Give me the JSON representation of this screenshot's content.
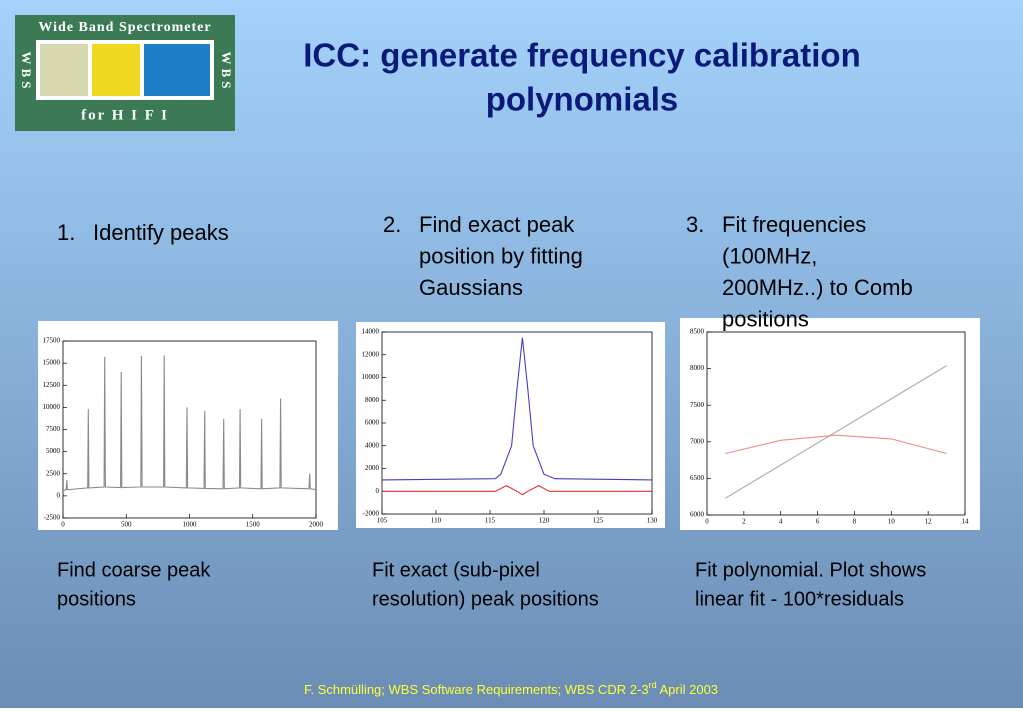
{
  "logo": {
    "title": "Wide Band Spectrometer",
    "subtitle": "for H I F I",
    "side": "WBS"
  },
  "title": [
    "ICC: generate frequency calibration",
    "polynomials"
  ],
  "steps": [
    {
      "number": "1.",
      "lines": [
        "Identify peaks"
      ]
    },
    {
      "number": "2.",
      "lines": [
        "Find exact peak",
        "position by fitting",
        "Gaussians"
      ]
    },
    {
      "number": "3.",
      "lines": [
        "Fit frequencies",
        "(100MHz,",
        "200MHz..) to Comb",
        "positions"
      ]
    }
  ],
  "captions": [
    [
      "Find coarse peak",
      "positions"
    ],
    [
      "Fit exact (sub-pixel",
      "resolution) peak positions"
    ],
    [
      "Fit polynomial. Plot shows",
      "linear fit - 100*residuals"
    ]
  ],
  "footer": [
    "F. Schmülling; WBS Software Requirements; WBS CDR 2-3",
    "rd",
    " April 2003"
  ],
  "chart_data": [
    {
      "type": "line",
      "xlim": [
        0,
        2000
      ],
      "ylim": [
        -2500,
        17500
      ],
      "xticks": [
        0,
        500,
        1000,
        1500,
        2000
      ],
      "yticks": [
        -2500,
        0,
        2500,
        5000,
        7500,
        10000,
        12500,
        15000,
        17500
      ],
      "series": [
        {
          "color": "#8a8a8a",
          "x": [
            0,
            25,
            30,
            35,
            195,
            200,
            205,
            325,
            330,
            335,
            455,
            460,
            465,
            615,
            620,
            625,
            795,
            800,
            805,
            975,
            980,
            985,
            1115,
            1120,
            1125,
            1265,
            1270,
            1275,
            1395,
            1400,
            1405,
            1565,
            1570,
            1575,
            1715,
            1720,
            1725,
            1945,
            1950,
            1955,
            2000
          ],
          "values": [
            600,
            700,
            1800,
            700,
            900,
            9800,
            900,
            1000,
            15700,
            1000,
            950,
            14000,
            950,
            1000,
            15800,
            1000,
            1000,
            15900,
            1000,
            900,
            10000,
            900,
            850,
            9600,
            850,
            800,
            8700,
            800,
            900,
            9800,
            900,
            800,
            8700,
            800,
            900,
            11000,
            900,
            800,
            2500,
            800,
            700
          ]
        }
      ]
    },
    {
      "type": "line",
      "xlim": [
        105,
        130
      ],
      "ylim": [
        -2000,
        14000
      ],
      "xticks": [
        105,
        110,
        115,
        120,
        125,
        130
      ],
      "yticks": [
        -2000,
        0,
        2000,
        4000,
        6000,
        8000,
        10000,
        12000,
        14000
      ],
      "series": [
        {
          "color": "#4040c0",
          "x": [
            105,
            115.5,
            116,
            117,
            117.5,
            118,
            118.5,
            119,
            120,
            121,
            130
          ],
          "values": [
            1000,
            1100,
            1500,
            4000,
            9000,
            13500,
            9000,
            4000,
            1500,
            1100,
            1000
          ]
        },
        {
          "color": "#e03030",
          "x": [
            105,
            115.5,
            116.5,
            117.5,
            118,
            118.5,
            119.5,
            120.5,
            130
          ],
          "values": [
            0,
            0,
            500,
            0,
            -300,
            0,
            500,
            0,
            0
          ]
        }
      ]
    },
    {
      "type": "line",
      "xlim": [
        0,
        14
      ],
      "ylim": [
        6000,
        8500
      ],
      "xticks": [
        0,
        2,
        4,
        6,
        8,
        10,
        12,
        14
      ],
      "yticks": [
        6000,
        6500,
        7000,
        7500,
        8000,
        8500
      ],
      "series": [
        {
          "color": "#a8a8a8",
          "x": [
            1,
            13
          ],
          "values": [
            6230,
            8040
          ]
        },
        {
          "color": "#f08a8a",
          "x": [
            1,
            4,
            7,
            10,
            13
          ],
          "values": [
            6840,
            7020,
            7090,
            7040,
            6840
          ]
        }
      ]
    }
  ]
}
